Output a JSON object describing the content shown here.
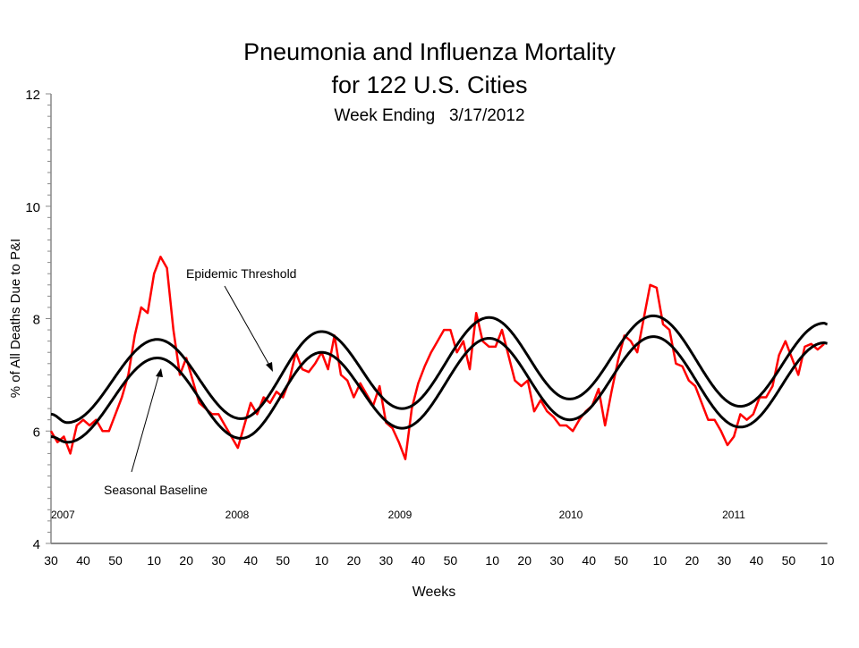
{
  "chart_data": {
    "type": "line",
    "title": "Pneumonia and Influenza Mortality",
    "subtitle": "for 122 U.S. Cities",
    "subtitle2": "Week Ending   3/17/2012",
    "xlabel": "Weeks",
    "ylabel": "% of All Deaths Due to P&I",
    "ylim": [
      4,
      12
    ],
    "yticks": [
      "4",
      "6",
      "8",
      "10",
      "12"
    ],
    "xlim": [
      "2007-30",
      "2012-10"
    ],
    "grid": false,
    "legend": "none",
    "xticks": [
      {
        "week": "2007-30",
        "label": "30"
      },
      {
        "week": "2007-40",
        "label": "40"
      },
      {
        "week": "2007-50",
        "label": "50"
      },
      {
        "week": "2008-10",
        "label": "10"
      },
      {
        "week": "2008-20",
        "label": "20"
      },
      {
        "week": "2008-30",
        "label": "30"
      },
      {
        "week": "2008-40",
        "label": "40"
      },
      {
        "week": "2008-50",
        "label": "50"
      },
      {
        "week": "2009-10",
        "label": "10"
      },
      {
        "week": "2009-20",
        "label": "20"
      },
      {
        "week": "2009-30",
        "label": "30"
      },
      {
        "week": "2009-40",
        "label": "40"
      },
      {
        "week": "2009-50",
        "label": "50"
      },
      {
        "week": "2010-10",
        "label": "10"
      },
      {
        "week": "2010-20",
        "label": "20"
      },
      {
        "week": "2010-30",
        "label": "30"
      },
      {
        "week": "2010-40",
        "label": "40"
      },
      {
        "week": "2010-50",
        "label": "50"
      },
      {
        "week": "2011-10",
        "label": "10"
      },
      {
        "week": "2011-20",
        "label": "20"
      },
      {
        "week": "2011-30",
        "label": "30"
      },
      {
        "week": "2011-40",
        "label": "40"
      },
      {
        "week": "2011-50",
        "label": "50"
      },
      {
        "week": "2012-10",
        "label": "10"
      }
    ],
    "year_labels": [
      "2007",
      "2008",
      "2009",
      "2010",
      "2011"
    ],
    "annotations": {
      "threshold": "Epidemic Threshold",
      "baseline": "Seasonal Baseline"
    },
    "colors": {
      "observed": "#ff0000",
      "baseline": "#000000",
      "threshold": "#000000"
    },
    "series": [
      {
        "id": "observed",
        "weeks": [
          "2007-30",
          "2007-32",
          "2007-34",
          "2007-36",
          "2007-38",
          "2007-40",
          "2007-42",
          "2007-44",
          "2007-46",
          "2007-48",
          "2007-50",
          "2007-52",
          "2008-2",
          "2008-4",
          "2008-6",
          "2008-8",
          "2008-10",
          "2008-12",
          "2008-14",
          "2008-16",
          "2008-18",
          "2008-20",
          "2008-22",
          "2008-24",
          "2008-26",
          "2008-28",
          "2008-30",
          "2008-32",
          "2008-34",
          "2008-36",
          "2008-38",
          "2008-40",
          "2008-42",
          "2008-44",
          "2008-46",
          "2008-48",
          "2008-50",
          "2008-52",
          "2009-2",
          "2009-4",
          "2009-6",
          "2009-8",
          "2009-10",
          "2009-12",
          "2009-14",
          "2009-16",
          "2009-18",
          "2009-20",
          "2009-22",
          "2009-24",
          "2009-26",
          "2009-28",
          "2009-30",
          "2009-32",
          "2009-34",
          "2009-36",
          "2009-38",
          "2009-40",
          "2009-42",
          "2009-44",
          "2009-46",
          "2009-48",
          "2009-50",
          "2009-52",
          "2010-1",
          "2010-3",
          "2010-5",
          "2010-7",
          "2010-9",
          "2010-11",
          "2010-13",
          "2010-15",
          "2010-17",
          "2010-19",
          "2010-21",
          "2010-23",
          "2010-25",
          "2010-27",
          "2010-29",
          "2010-31",
          "2010-33",
          "2010-35",
          "2010-37",
          "2010-39",
          "2010-41",
          "2010-43",
          "2010-45",
          "2010-47",
          "2010-49",
          "2010-51",
          "2011-1",
          "2011-3",
          "2011-5",
          "2011-7",
          "2011-9",
          "2011-11",
          "2011-13",
          "2011-15",
          "2011-17",
          "2011-19",
          "2011-21",
          "2011-23",
          "2011-25",
          "2011-27",
          "2011-29",
          "2011-31",
          "2011-33",
          "2011-35",
          "2011-37",
          "2011-39",
          "2011-41",
          "2011-43",
          "2011-45",
          "2011-47",
          "2011-49",
          "2011-51",
          "2012-1",
          "2012-3",
          "2012-5",
          "2012-7",
          "2012-9"
        ],
        "values": [
          6.0,
          5.8,
          5.9,
          5.6,
          6.1,
          6.2,
          6.1,
          6.2,
          6.0,
          6.0,
          6.3,
          6.6,
          7.0,
          7.7,
          8.2,
          8.1,
          8.8,
          9.1,
          8.9,
          7.8,
          7.0,
          7.3,
          6.9,
          6.5,
          6.4,
          6.3,
          6.3,
          6.1,
          5.9,
          5.7,
          6.1,
          6.5,
          6.3,
          6.6,
          6.5,
          6.7,
          6.6,
          6.9,
          7.4,
          7.1,
          7.05,
          7.2,
          7.4,
          7.1,
          7.7,
          7.0,
          6.9,
          6.6,
          6.85,
          6.65,
          6.45,
          6.8,
          6.15,
          6.05,
          5.8,
          5.5,
          6.4,
          6.85,
          7.15,
          7.4,
          7.6,
          7.8,
          7.8,
          7.4,
          7.6,
          7.1,
          8.1,
          7.6,
          7.5,
          7.5,
          7.8,
          7.35,
          6.9,
          6.8,
          6.9,
          6.35,
          6.55,
          6.35,
          6.25,
          6.1,
          6.1,
          6.0,
          6.2,
          6.35,
          6.45,
          6.75,
          6.1,
          6.7,
          7.25,
          7.7,
          7.6,
          7.4,
          8.0,
          8.6,
          8.55,
          7.9,
          7.8,
          7.2,
          7.15,
          6.9,
          6.8,
          6.5,
          6.2,
          6.2,
          6.0,
          5.75,
          5.9,
          6.3,
          6.2,
          6.3,
          6.6,
          6.6,
          6.8,
          7.35,
          7.6,
          7.3,
          7.0,
          7.5,
          7.55,
          7.45,
          7.55
        ]
      },
      {
        "id": "baseline",
        "weeks": [
          "2007-30",
          "2007-35",
          "2008-11",
          "2008-37",
          "2009-10",
          "2009-35",
          "2010-9",
          "2010-34",
          "2011-8",
          "2011-35",
          "2012-9",
          "2012-10"
        ],
        "values": [
          5.9,
          5.8,
          7.3,
          5.87,
          7.4,
          6.05,
          7.65,
          6.2,
          7.68,
          6.07,
          7.57,
          7.56
        ]
      },
      {
        "id": "threshold",
        "weeks": [
          "2007-30",
          "2007-35",
          "2008-11",
          "2008-37",
          "2009-10",
          "2009-35",
          "2010-9",
          "2010-34",
          "2011-8",
          "2011-35",
          "2012-9",
          "2012-10"
        ],
        "values": [
          6.3,
          6.15,
          7.63,
          6.22,
          7.77,
          6.4,
          8.02,
          6.57,
          8.05,
          6.44,
          7.92,
          7.9
        ]
      }
    ]
  }
}
